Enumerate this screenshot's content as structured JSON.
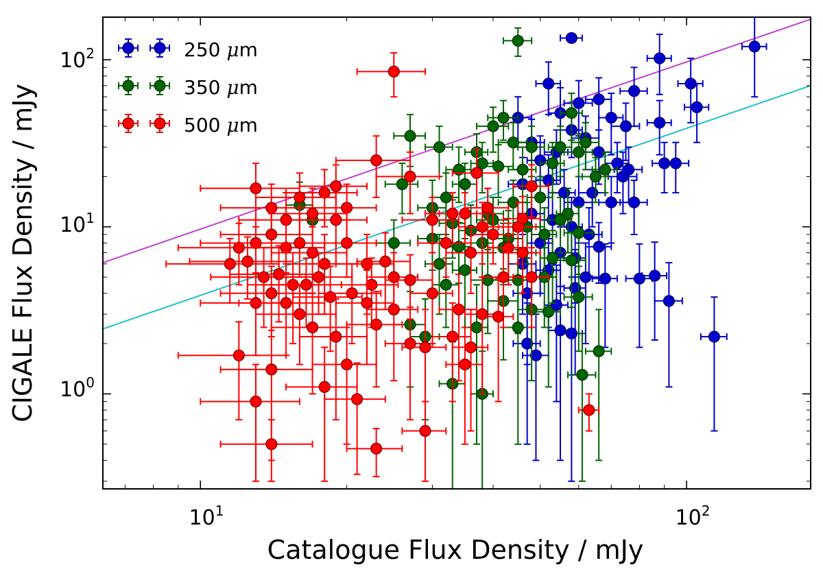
{
  "chart_data": {
    "type": "scatter",
    "title": "",
    "xlabel": "Catalogue Flux Density / mJy",
    "ylabel": "CIGALE Flux Density / mJy",
    "xscale": "log",
    "yscale": "log",
    "xlim": [
      6.3,
      180
    ],
    "ylim": [
      0.27,
      180
    ],
    "x_ticks": [
      {
        "value": 10,
        "base": "10",
        "exp": "1"
      },
      {
        "value": 100,
        "base": "10",
        "exp": "2"
      }
    ],
    "y_ticks": [
      {
        "value": 1,
        "base": "10",
        "exp": "0"
      },
      {
        "value": 10,
        "base": "10",
        "exp": "1"
      },
      {
        "value": 100,
        "base": "10",
        "exp": "2"
      }
    ],
    "legend": {
      "placement": "top-left",
      "entries": [
        {
          "name": "250",
          "unit": "m",
          "prefix": "μ",
          "color": "#0000cc"
        },
        {
          "name": "350",
          "unit": "m",
          "prefix": "μ",
          "color": "#006400"
        },
        {
          "name": "500",
          "unit": "m",
          "prefix": "μ",
          "color": "#ff0000"
        }
      ]
    },
    "reference_lines": [
      {
        "name": "upper-fit",
        "color": "#c040d0",
        "points": [
          [
            6.3,
            6.1
          ],
          [
            180,
            175
          ]
        ]
      },
      {
        "name": "lower-fit",
        "color": "#20c0c8",
        "points": [
          [
            6.3,
            2.45
          ],
          [
            180,
            70
          ]
        ]
      }
    ],
    "series": [
      {
        "name": "250 μm",
        "color": "#0000cc",
        "points": [
          [
            58,
            135,
            3,
            8
          ],
          [
            138,
            120,
            8,
            60
          ],
          [
            88,
            102,
            5,
            40
          ],
          [
            102,
            72,
            6,
            30
          ],
          [
            78,
            65,
            5,
            25
          ],
          [
            52,
            72,
            3,
            25
          ],
          [
            55,
            48,
            3,
            20
          ],
          [
            60,
            55,
            4,
            20
          ],
          [
            66,
            58,
            4,
            20
          ],
          [
            70,
            45,
            4,
            18
          ],
          [
            75,
            40,
            5,
            15
          ],
          [
            88,
            42,
            5,
            15
          ],
          [
            105,
            52,
            6,
            20
          ],
          [
            45,
            45,
            3,
            15
          ],
          [
            48,
            32,
            3,
            12
          ],
          [
            50,
            25,
            3,
            10
          ],
          [
            54,
            28,
            3,
            10
          ],
          [
            58,
            38,
            3,
            12
          ],
          [
            62,
            34,
            4,
            12
          ],
          [
            66,
            28,
            4,
            10
          ],
          [
            72,
            24,
            4,
            8
          ],
          [
            76,
            22,
            5,
            8
          ],
          [
            90,
            24,
            5,
            8
          ],
          [
            95,
            24,
            6,
            8
          ],
          [
            46,
            18,
            3,
            8
          ],
          [
            52,
            19,
            3,
            8
          ],
          [
            56,
            16,
            3,
            6
          ],
          [
            60,
            14,
            4,
            6
          ],
          [
            64,
            16,
            4,
            6
          ],
          [
            70,
            14,
            4,
            6
          ],
          [
            74,
            20,
            5,
            8
          ],
          [
            78,
            14,
            5,
            5
          ],
          [
            48,
            12,
            3,
            5
          ],
          [
            53,
            11,
            3,
            5
          ],
          [
            58,
            10,
            3,
            5
          ],
          [
            63,
            9,
            4,
            4
          ],
          [
            66,
            7.6,
            4,
            3
          ],
          [
            50,
            8,
            3,
            4
          ],
          [
            55,
            7,
            3,
            3
          ],
          [
            59,
            6.5,
            3,
            3
          ],
          [
            46,
            6,
            3,
            3
          ],
          [
            52,
            5.5,
            3,
            3
          ],
          [
            62,
            5,
            4,
            3
          ],
          [
            68,
            4.9,
            4,
            3
          ],
          [
            80,
            4.9,
            5,
            3
          ],
          [
            86,
            5.1,
            5,
            3
          ],
          [
            92,
            3.6,
            6,
            2.5
          ],
          [
            59,
            4.3,
            3,
            3
          ],
          [
            47,
            4,
            3,
            2.5
          ],
          [
            54,
            3.4,
            3,
            2.5
          ],
          [
            58,
            2.3,
            3,
            2
          ],
          [
            55,
            2.4,
            3,
            2
          ],
          [
            47,
            2,
            3,
            1.5
          ],
          [
            49,
            1.7,
            3,
            1.3
          ],
          [
            114,
            2.2,
            7,
            1.6
          ]
        ]
      },
      {
        "name": "350 μm",
        "color": "#006400",
        "points": [
          [
            45,
            130,
            3,
            25
          ],
          [
            27,
            35,
            2,
            12
          ],
          [
            31,
            30,
            2,
            10
          ],
          [
            40,
            40,
            3,
            12
          ],
          [
            42,
            45,
            3,
            12
          ],
          [
            44,
            32,
            3,
            10
          ],
          [
            48,
            30,
            3,
            10
          ],
          [
            55,
            30,
            3,
            10
          ],
          [
            58,
            48,
            3,
            15
          ],
          [
            62,
            32,
            4,
            10
          ],
          [
            26,
            18,
            2,
            6
          ],
          [
            34,
            22,
            2,
            8
          ],
          [
            37,
            28,
            2,
            8
          ],
          [
            38,
            24,
            2,
            8
          ],
          [
            41,
            23,
            3,
            8
          ],
          [
            46,
            22,
            3,
            8
          ],
          [
            53,
            24,
            3,
            8
          ],
          [
            60,
            28,
            4,
            8
          ],
          [
            65,
            20,
            4,
            6
          ],
          [
            68,
            22,
            4,
            6
          ],
          [
            30,
            13,
            2,
            6
          ],
          [
            32,
            15,
            2,
            6
          ],
          [
            35,
            18,
            2,
            6
          ],
          [
            39,
            12,
            3,
            5
          ],
          [
            44,
            14,
            3,
            5
          ],
          [
            50,
            15,
            3,
            5
          ],
          [
            57,
            12,
            3,
            5
          ],
          [
            16,
            13.5,
            1,
            5
          ],
          [
            17,
            11,
            1,
            5
          ],
          [
            33,
            10.5,
            2,
            4
          ],
          [
            36,
            9.5,
            2,
            4
          ],
          [
            40,
            11,
            3,
            4
          ],
          [
            43,
            8.5,
            3,
            4
          ],
          [
            47,
            10,
            3,
            4
          ],
          [
            51,
            9,
            3,
            4
          ],
          [
            55,
            11,
            3,
            4
          ],
          [
            60,
            9.2,
            4,
            4
          ],
          [
            25,
            8,
            2,
            3
          ],
          [
            30,
            8.5,
            2,
            3
          ],
          [
            34,
            7.6,
            2,
            3
          ],
          [
            38,
            8,
            2,
            3
          ],
          [
            42,
            7.5,
            3,
            3
          ],
          [
            46,
            7,
            3,
            3
          ],
          [
            53,
            6.5,
            3,
            3
          ],
          [
            58,
            6.3,
            4,
            3
          ],
          [
            31,
            6,
            2,
            3
          ],
          [
            35,
            5.5,
            2,
            3
          ],
          [
            39,
            4.8,
            3,
            2.5
          ],
          [
            45,
            4.8,
            3,
            2.5
          ],
          [
            51,
            5,
            3,
            2.5
          ],
          [
            32,
            4.5,
            2,
            2
          ],
          [
            42,
            3.6,
            3,
            2
          ],
          [
            48,
            3.2,
            3,
            2
          ],
          [
            52,
            3.1,
            3,
            2
          ],
          [
            37,
            2.5,
            2,
            2
          ],
          [
            45,
            2.5,
            3,
            2
          ],
          [
            29,
            2.2,
            2,
            1.5
          ],
          [
            27,
            2.6,
            2,
            1.5
          ],
          [
            60,
            3.8,
            4,
            2
          ],
          [
            66,
            1.8,
            4,
            1.4
          ],
          [
            33,
            1.15,
            2,
            0.9
          ],
          [
            38,
            1,
            2,
            0.8
          ],
          [
            61,
            1.3,
            4,
            1
          ]
        ]
      },
      {
        "name": "500 μm",
        "color": "#ff0000",
        "points": [
          [
            25,
            85,
            4,
            25
          ],
          [
            23,
            25,
            4,
            10
          ],
          [
            27,
            20,
            4,
            8
          ],
          [
            37,
            21,
            4,
            8
          ],
          [
            13,
            17,
            3,
            7
          ],
          [
            18,
            16,
            3,
            6
          ],
          [
            19,
            17.5,
            3,
            6
          ],
          [
            14,
            13,
            3,
            5
          ],
          [
            16,
            15,
            3,
            6
          ],
          [
            20,
            13,
            3,
            5
          ],
          [
            17,
            12,
            3,
            5
          ],
          [
            15,
            11,
            3,
            5
          ],
          [
            19,
            11,
            3,
            5
          ],
          [
            12,
            7.5,
            3,
            3
          ],
          [
            13,
            8,
            3,
            3
          ],
          [
            14,
            9,
            3,
            3
          ],
          [
            15,
            7.5,
            3,
            3
          ],
          [
            16,
            8,
            3,
            3
          ],
          [
            17,
            7,
            3,
            3
          ],
          [
            18,
            6,
            3,
            3
          ],
          [
            20,
            8,
            3,
            3
          ],
          [
            22,
            6,
            3,
            3
          ],
          [
            24,
            6.2,
            3,
            3
          ],
          [
            11.5,
            6,
            3,
            2.5
          ],
          [
            12.5,
            6.2,
            3,
            2.5
          ],
          [
            13.5,
            5,
            3,
            2.5
          ],
          [
            14.5,
            5.2,
            3,
            2.5
          ],
          [
            15.5,
            4.5,
            3,
            2.5
          ],
          [
            16.5,
            4.5,
            3,
            2
          ],
          [
            17.5,
            5,
            3,
            2
          ],
          [
            18.5,
            3.8,
            3,
            2
          ],
          [
            20.5,
            4,
            3,
            2
          ],
          [
            22.5,
            4.5,
            3,
            2
          ],
          [
            25,
            5,
            3,
            2
          ],
          [
            27,
            4.8,
            3,
            2
          ],
          [
            30,
            11,
            4,
            4
          ],
          [
            33,
            12,
            4,
            4
          ],
          [
            35,
            12,
            4,
            4
          ],
          [
            38,
            10,
            4,
            4
          ],
          [
            39,
            13,
            4,
            4
          ],
          [
            32,
            8,
            4,
            3
          ],
          [
            36,
            7,
            4,
            3
          ],
          [
            40,
            9,
            4,
            3
          ],
          [
            45,
            10,
            4,
            4
          ],
          [
            48,
            17.5,
            4,
            6
          ],
          [
            46,
            11.2,
            4,
            4
          ],
          [
            43,
            7.5,
            4,
            3
          ],
          [
            46,
            7,
            4,
            3
          ],
          [
            42,
            5,
            4,
            2.5
          ],
          [
            48,
            5,
            4,
            2.5
          ],
          [
            30,
            4,
            3,
            2
          ],
          [
            34,
            3.2,
            3,
            2
          ],
          [
            38,
            3,
            3,
            2
          ],
          [
            41,
            2.9,
            3,
            2
          ],
          [
            25,
            3.2,
            3,
            2
          ],
          [
            22,
            3.5,
            3,
            2
          ],
          [
            23,
            2.6,
            3,
            1.5
          ],
          [
            27,
            2,
            3,
            1.3
          ],
          [
            29,
            1.9,
            3,
            1.3
          ],
          [
            33,
            2.2,
            3,
            1.3
          ],
          [
            36,
            1.9,
            3,
            1.3
          ],
          [
            13,
            3.5,
            3,
            1.8
          ],
          [
            14,
            4,
            3,
            1.8
          ],
          [
            15,
            3.5,
            3,
            1.8
          ],
          [
            16,
            3,
            3,
            1.5
          ],
          [
            17,
            2.5,
            3,
            1.5
          ],
          [
            19,
            2.2,
            3,
            1.5
          ],
          [
            12,
            1.7,
            3,
            1
          ],
          [
            14,
            1.4,
            3,
            1
          ],
          [
            18,
            1.1,
            3,
            0.8
          ],
          [
            20,
            1.5,
            3,
            1
          ],
          [
            35,
            1.5,
            3,
            1
          ],
          [
            21,
            0.93,
            3,
            0.6
          ],
          [
            13,
            0.9,
            3,
            0.6
          ],
          [
            14,
            0.5,
            3,
            0.2
          ],
          [
            23,
            0.47,
            3,
            0.15
          ],
          [
            29,
            0.6,
            3,
            0.3
          ],
          [
            63,
            0.8,
            3,
            0.2
          ]
        ]
      }
    ]
  }
}
